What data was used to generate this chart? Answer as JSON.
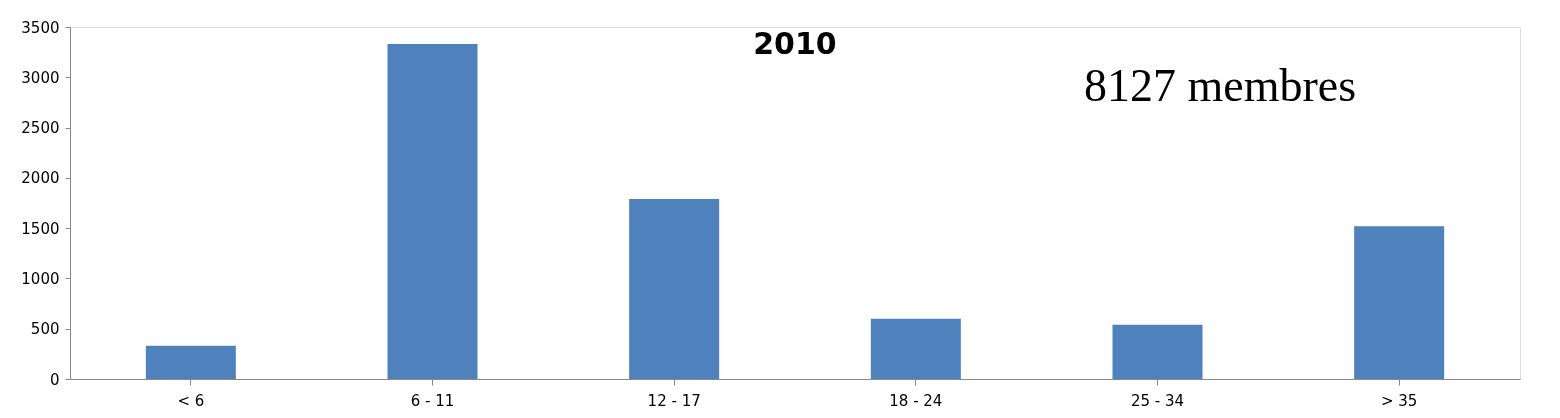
{
  "chart_data": {
    "type": "bar",
    "title": "2010",
    "categories": [
      "< 6",
      "6 - 11",
      "12 - 17",
      "18 - 24",
      "25 - 34",
      "> 35"
    ],
    "values": [
      330,
      3330,
      1790,
      600,
      540,
      1520
    ],
    "color": "#4f81bd",
    "ylim": [
      0,
      3500
    ],
    "yticks": [
      0,
      500,
      1000,
      1500,
      2000,
      2500,
      3000,
      3500
    ],
    "grid": false,
    "annotations": [
      "8127 membres"
    ]
  }
}
